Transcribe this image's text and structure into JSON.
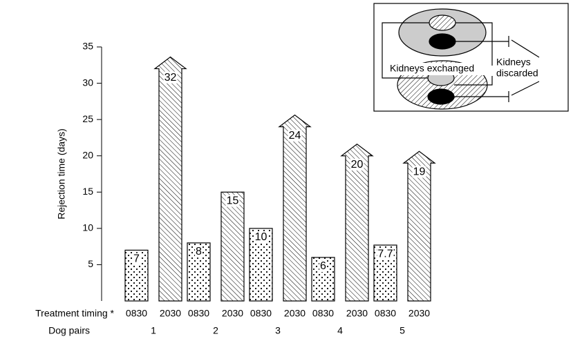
{
  "chart_data": {
    "type": "bar",
    "ylabel": "Rejection time (days)",
    "xlabel": "Dog pairs",
    "timing_label": "Treatment timing *",
    "categories": [
      "1",
      "2",
      "3",
      "4",
      "5"
    ],
    "series": [
      {
        "name": "0830",
        "color": "#000000",
        "pattern": "dots",
        "values": [
          7,
          8,
          10,
          6,
          7.7
        ]
      },
      {
        "name": "2030",
        "color": "#000000",
        "pattern": "hatch",
        "values": [
          32,
          15,
          24,
          20,
          19
        ],
        "arrows": [
          true,
          false,
          true,
          true,
          true
        ]
      }
    ],
    "ylim": [
      0,
      35
    ],
    "yticks": [
      5,
      10,
      15,
      20,
      25,
      30,
      35
    ],
    "grid": false,
    "inset": {
      "exchanged": "Kidneys exchanged",
      "discarded": [
        "Kidneys",
        "discarded"
      ]
    }
  }
}
